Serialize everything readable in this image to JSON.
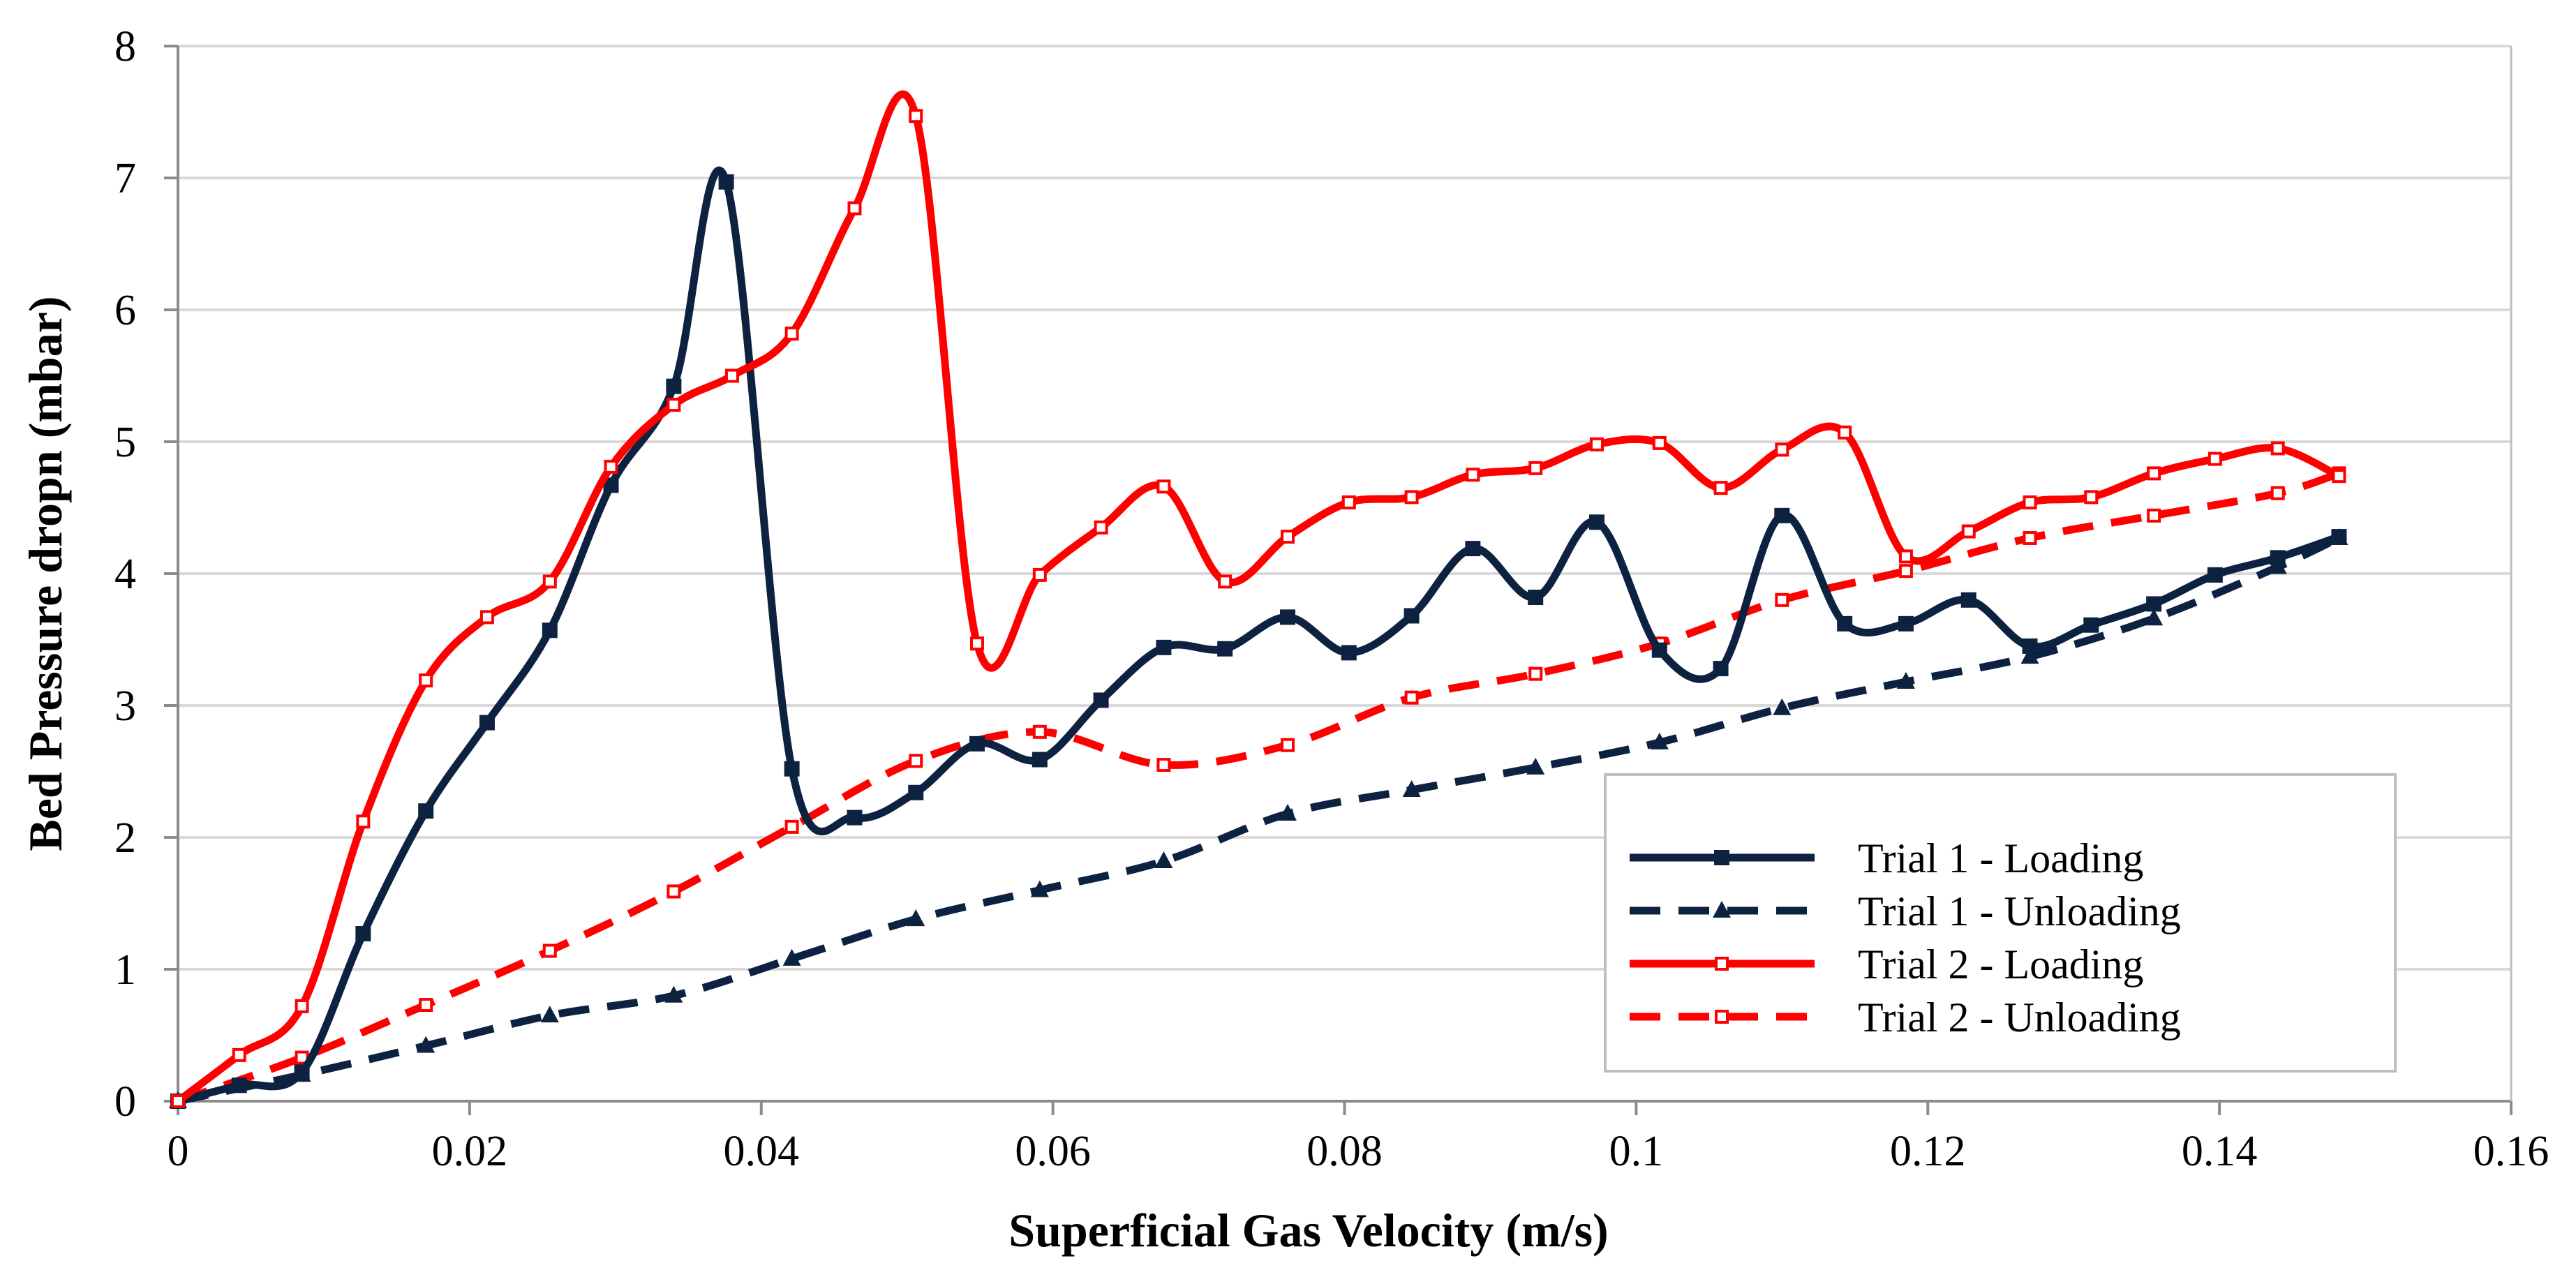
{
  "chart_data": {
    "type": "line",
    "title": "",
    "xlabel": "Superficial Gas Velocity (m/s)",
    "ylabel": "Bed Pressure dropn (mbar)",
    "xlim": [
      0,
      0.16
    ],
    "ylim": [
      0,
      8
    ],
    "xticks": [
      0,
      0.02,
      0.04,
      0.06,
      0.08,
      0.1,
      0.12,
      0.14,
      0.16
    ],
    "xtick_labels": [
      "0",
      "0.02",
      "0.04",
      "0.06",
      "0.08",
      "0.1",
      "0.12",
      "0.14",
      "0.16"
    ],
    "yticks": [
      0,
      1,
      2,
      3,
      4,
      5,
      6,
      7,
      8
    ],
    "ytick_labels": [
      "0",
      "1",
      "2",
      "3",
      "4",
      "5",
      "6",
      "7",
      "8"
    ],
    "grid": "horizontal",
    "legend_position": "bottom-right",
    "series": [
      {
        "name": "Trial 1 - Loading",
        "color": "#0d2240",
        "dash": "solid",
        "marker": "square-filled",
        "x": [
          0,
          0.0042,
          0.0085,
          0.0127,
          0.017,
          0.0212,
          0.0255,
          0.0297,
          0.034,
          0.0376,
          0.0421,
          0.0464,
          0.0506,
          0.0548,
          0.0591,
          0.0633,
          0.0676,
          0.0718,
          0.0761,
          0.0803,
          0.0846,
          0.0888,
          0.0931,
          0.0973,
          0.1016,
          0.1058,
          0.11,
          0.1143,
          0.1185,
          0.1228,
          0.127,
          0.1312,
          0.1355,
          0.1397,
          0.144,
          0.1482
        ],
        "y": [
          0,
          0.12,
          0.22,
          1.27,
          2.2,
          2.87,
          3.57,
          4.67,
          5.42,
          6.97,
          2.52,
          2.15,
          2.34,
          2.71,
          2.59,
          3.04,
          3.44,
          3.43,
          3.67,
          3.4,
          3.68,
          4.19,
          3.82,
          4.39,
          3.42,
          3.28,
          4.44,
          3.62,
          3.62,
          3.8,
          3.45,
          3.61,
          3.77,
          3.99,
          4.12,
          4.28
        ]
      },
      {
        "name": "Trial 1 - Unloading",
        "color": "#0d2240",
        "dash": "dashed",
        "marker": "triangle-filled",
        "x": [
          0,
          0.0085,
          0.017,
          0.0255,
          0.034,
          0.0421,
          0.0506,
          0.0591,
          0.0676,
          0.0761,
          0.0846,
          0.0931,
          0.1016,
          0.11,
          0.1185,
          0.127,
          0.1355,
          0.144,
          0.1482
        ],
        "y": [
          0,
          0.2,
          0.42,
          0.65,
          0.8,
          1.08,
          1.38,
          1.6,
          1.82,
          2.18,
          2.36,
          2.53,
          2.72,
          2.98,
          3.18,
          3.37,
          3.66,
          4.05,
          4.27
        ]
      },
      {
        "name": "Trial 2 - Loading",
        "color": "#ff0000",
        "dash": "solid",
        "marker": "square-open",
        "x": [
          0,
          0.0042,
          0.0085,
          0.0127,
          0.017,
          0.0212,
          0.0255,
          0.0297,
          0.034,
          0.038,
          0.0421,
          0.0464,
          0.0506,
          0.0548,
          0.0591,
          0.0633,
          0.0676,
          0.0718,
          0.0761,
          0.0803,
          0.0846,
          0.0888,
          0.0931,
          0.0973,
          0.1016,
          0.1058,
          0.11,
          0.1143,
          0.1185,
          0.1228,
          0.127,
          0.1312,
          0.1355,
          0.1397,
          0.144,
          0.1482
        ],
        "y": [
          0,
          0.35,
          0.72,
          2.12,
          3.19,
          3.67,
          3.94,
          4.81,
          5.28,
          5.5,
          5.82,
          6.77,
          7.47,
          3.47,
          3.99,
          4.35,
          4.66,
          3.94,
          4.28,
          4.54,
          4.58,
          4.75,
          4.8,
          4.98,
          4.99,
          4.65,
          4.94,
          5.07,
          4.13,
          4.32,
          4.54,
          4.58,
          4.76,
          4.87,
          4.95,
          4.74
        ]
      },
      {
        "name": "Trial 2 - Unloading",
        "color": "#ff0000",
        "dash": "dashed",
        "marker": "square-open",
        "x": [
          0,
          0.0085,
          0.017,
          0.0255,
          0.034,
          0.0421,
          0.0506,
          0.0591,
          0.0676,
          0.0761,
          0.0846,
          0.0931,
          0.1016,
          0.11,
          0.1185,
          0.127,
          0.1355,
          0.144,
          0.1482
        ],
        "y": [
          0,
          0.33,
          0.73,
          1.14,
          1.59,
          2.08,
          2.58,
          2.8,
          2.55,
          2.7,
          3.06,
          3.24,
          3.47,
          3.8,
          4.02,
          4.27,
          4.44,
          4.61,
          4.76
        ]
      }
    ]
  }
}
